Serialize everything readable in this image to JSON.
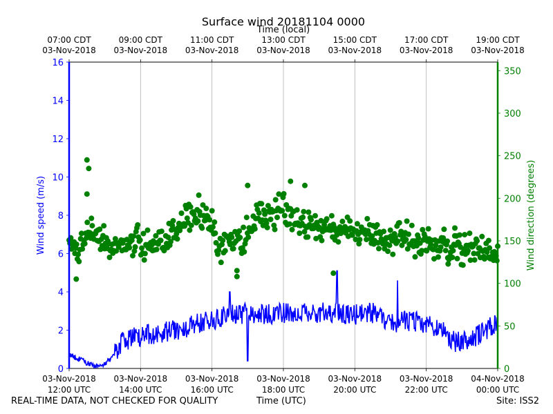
{
  "chart_data": {
    "type": "line",
    "title": "Surface wind 20181104 0000",
    "top_axis_label": "Time (local)",
    "xlabel": "Time (UTC)",
    "ylabel_left": "Wind speed (m/s)",
    "ylabel_right": "Wind direction (degrees)",
    "ylim_left": [
      0,
      16
    ],
    "ylim_right": [
      0,
      360
    ],
    "xlim_hours_utc": [
      12,
      24
    ],
    "yticks_left": [
      "0",
      "2",
      "4",
      "6",
      "8",
      "10",
      "12",
      "14",
      "16"
    ],
    "yticks_right": [
      "0",
      "50",
      "100",
      "150",
      "200",
      "250",
      "300",
      "350"
    ],
    "xticks_bottom": [
      {
        "date": "03-Nov-2018",
        "time": "12:00 UTC"
      },
      {
        "date": "03-Nov-2018",
        "time": "14:00 UTC"
      },
      {
        "date": "03-Nov-2018",
        "time": "16:00 UTC"
      },
      {
        "date": "03-Nov-2018",
        "time": "18:00 UTC"
      },
      {
        "date": "03-Nov-2018",
        "time": "20:00 UTC"
      },
      {
        "date": "03-Nov-2018",
        "time": "22:00 UTC"
      },
      {
        "date": "04-Nov-2018",
        "time": "00:00 UTC"
      }
    ],
    "xticks_top": [
      {
        "time": "07:00 CDT",
        "date": "03-Nov-2018"
      },
      {
        "time": "09:00 CDT",
        "date": "03-Nov-2018"
      },
      {
        "time": "11:00 CDT",
        "date": "03-Nov-2018"
      },
      {
        "time": "13:00 CDT",
        "date": "03-Nov-2018"
      },
      {
        "time": "15:00 CDT",
        "date": "03-Nov-2018"
      },
      {
        "time": "17:00 CDT",
        "date": "03-Nov-2018"
      },
      {
        "time": "19:00 CDT",
        "date": "03-Nov-2018"
      }
    ],
    "series": [
      {
        "name": "Wind speed",
        "axis": "left",
        "style": "line",
        "color": "#0000ff",
        "keypoints_hours_utc": [
          [
            12.0,
            0.7
          ],
          [
            12.4,
            0.4
          ],
          [
            12.7,
            0.1
          ],
          [
            13.0,
            0.2
          ],
          [
            13.2,
            0.6
          ],
          [
            13.5,
            1.4
          ],
          [
            14.0,
            1.7
          ],
          [
            14.6,
            1.9
          ],
          [
            15.0,
            2.0
          ],
          [
            15.5,
            2.3
          ],
          [
            16.0,
            2.5
          ],
          [
            16.5,
            2.8
          ],
          [
            17.0,
            2.9
          ],
          [
            17.5,
            2.8
          ],
          [
            18.0,
            2.9
          ],
          [
            18.5,
            3.0
          ],
          [
            19.0,
            2.9
          ],
          [
            19.5,
            2.9
          ],
          [
            20.0,
            2.8
          ],
          [
            20.5,
            2.9
          ],
          [
            21.0,
            2.4
          ],
          [
            21.5,
            2.5
          ],
          [
            22.0,
            2.3
          ],
          [
            22.5,
            1.9
          ],
          [
            22.8,
            1.4
          ],
          [
            23.2,
            1.5
          ],
          [
            23.6,
            1.9
          ],
          [
            24.0,
            2.4
          ]
        ],
        "spikes_hours_utc": [
          [
            16.5,
            4.0
          ],
          [
            17.0,
            0.4
          ],
          [
            19.5,
            5.1
          ],
          [
            21.2,
            4.6
          ]
        ]
      },
      {
        "name": "Wind direction",
        "axis": "right",
        "style": "scatter",
        "color": "#008000",
        "keypoints_hours_utc": [
          [
            12.0,
            150
          ],
          [
            12.2,
            135
          ],
          [
            12.4,
            150
          ],
          [
            12.6,
            165
          ],
          [
            13.0,
            148
          ],
          [
            13.2,
            140
          ],
          [
            13.5,
            145
          ],
          [
            14.0,
            148
          ],
          [
            14.4,
            140
          ],
          [
            14.8,
            152
          ],
          [
            15.0,
            160
          ],
          [
            15.3,
            175
          ],
          [
            15.6,
            182
          ],
          [
            16.0,
            172
          ],
          [
            16.2,
            140
          ],
          [
            16.5,
            150
          ],
          [
            16.8,
            150
          ],
          [
            17.0,
            165
          ],
          [
            17.3,
            182
          ],
          [
            17.6,
            180
          ],
          [
            18.0,
            185
          ],
          [
            18.3,
            175
          ],
          [
            18.7,
            170
          ],
          [
            19.0,
            172
          ],
          [
            19.5,
            160
          ],
          [
            20.0,
            158
          ],
          [
            20.5,
            158
          ],
          [
            21.0,
            152
          ],
          [
            21.5,
            155
          ],
          [
            22.0,
            145
          ],
          [
            22.5,
            142
          ],
          [
            23.0,
            140
          ],
          [
            23.5,
            140
          ],
          [
            24.0,
            135
          ]
        ],
        "outliers_hours_utc": [
          [
            12.2,
            105
          ],
          [
            12.5,
            245
          ],
          [
            12.55,
            235
          ],
          [
            12.5,
            205
          ],
          [
            16.7,
            108
          ],
          [
            16.7,
            115
          ],
          [
            17.0,
            215
          ],
          [
            18.2,
            220
          ],
          [
            18.6,
            215
          ],
          [
            19.4,
            112
          ],
          [
            22.6,
            130
          ],
          [
            22.8,
            165
          ]
        ]
      }
    ]
  },
  "footer": {
    "disclaimer": "REAL-TIME DATA, NOT CHECKED FOR QUALITY",
    "site": "Site: ISS2"
  },
  "colors": {
    "speed": "#0000ff",
    "direction": "#008000",
    "grid": "#b0b0b0"
  }
}
